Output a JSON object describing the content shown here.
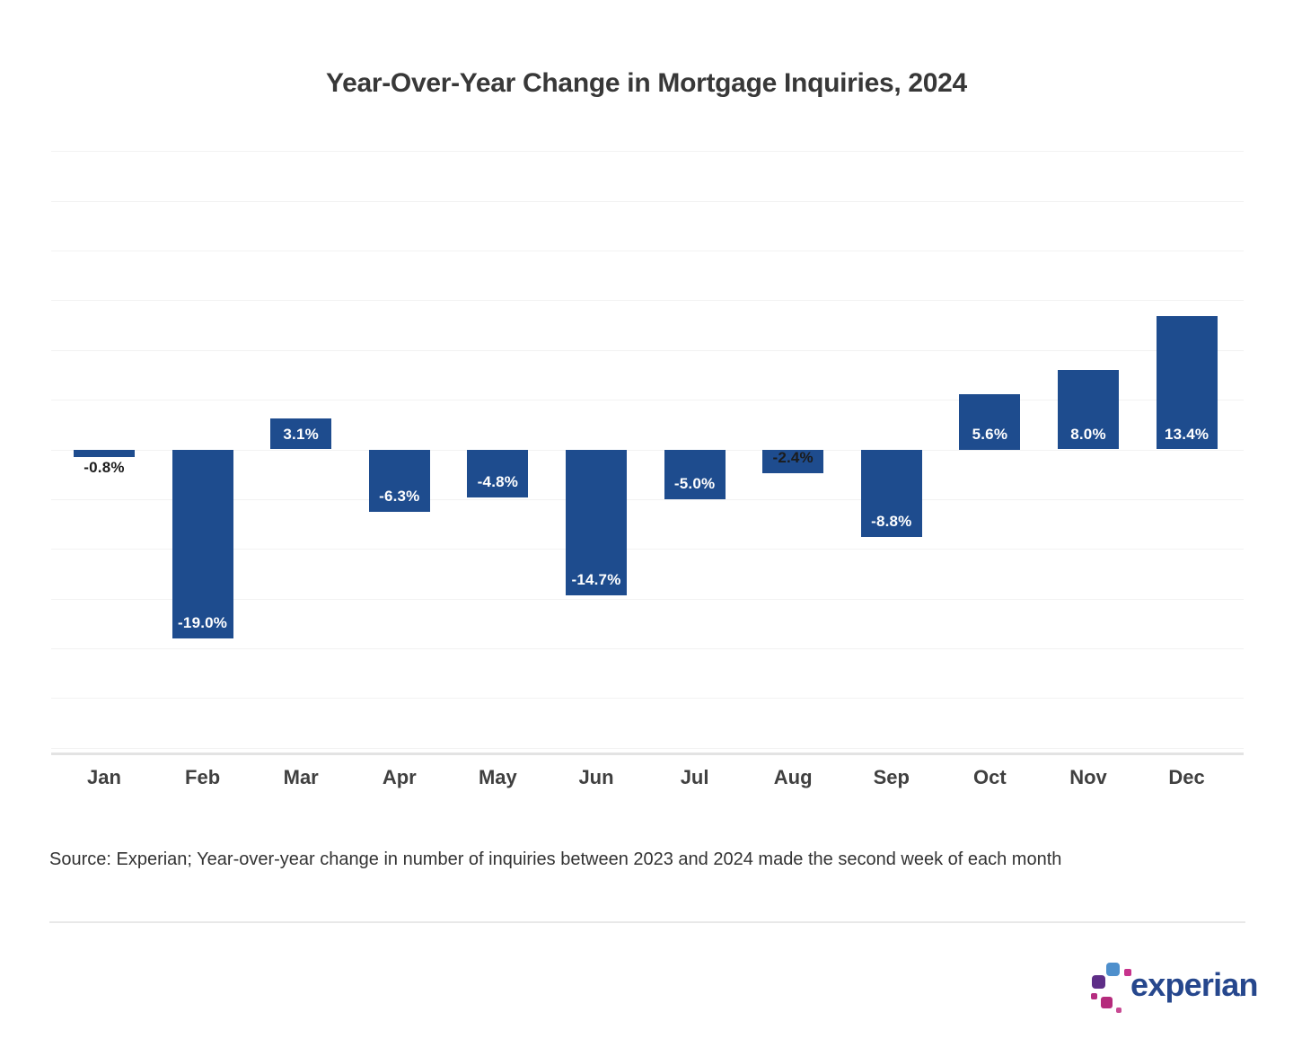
{
  "chart_data": {
    "type": "bar",
    "title": "Year-Over-Year Change in Mortgage Inquiries, 2024",
    "categories": [
      "Jan",
      "Feb",
      "Mar",
      "Apr",
      "May",
      "Jun",
      "Jul",
      "Aug",
      "Sep",
      "Oct",
      "Nov",
      "Dec"
    ],
    "values": [
      -0.8,
      -19.0,
      3.1,
      -6.3,
      -4.8,
      -14.7,
      -5.0,
      -2.4,
      -8.8,
      5.6,
      8.0,
      13.4
    ],
    "labels": [
      "-0.8%",
      "-19.0%",
      "3.1%",
      "-6.3%",
      "-4.8%",
      "-14.7%",
      "-5.0%",
      "-2.4%",
      "-8.8%",
      "5.6%",
      "8.0%",
      "13.4%"
    ],
    "label_variants": [
      "below-dark",
      "inside",
      "inside",
      "inside",
      "inside",
      "inside",
      "inside",
      "inside-dark",
      "inside",
      "inside",
      "inside",
      "inside"
    ],
    "xlabel": "",
    "ylabel": "",
    "ylim": [
      -30,
      30
    ],
    "grid_step": 5,
    "grid": true,
    "legend": false,
    "bar_color": "#1e4c8e",
    "label_color_inside": "#ffffff",
    "label_color_dark": "#1c1c1c"
  },
  "source_note": "Source: Experian; Year-over-year change in number of inquiries between 2023 and 2024 made the second week of each month",
  "branding": {
    "logo_text": "experian",
    "trademark": "™",
    "logo_text_color": "#26478d",
    "logo_blocks": [
      {
        "name": "blue-square",
        "color": "#4e8fcc"
      },
      {
        "name": "magenta-dot",
        "color": "#c7338c"
      },
      {
        "name": "purple-square",
        "color": "#5e2e87"
      },
      {
        "name": "magenta-dot-small",
        "color": "#b62d80"
      },
      {
        "name": "magenta-square",
        "color": "#b52b7c"
      },
      {
        "name": "pink-dot",
        "color": "#c84a93"
      }
    ]
  }
}
